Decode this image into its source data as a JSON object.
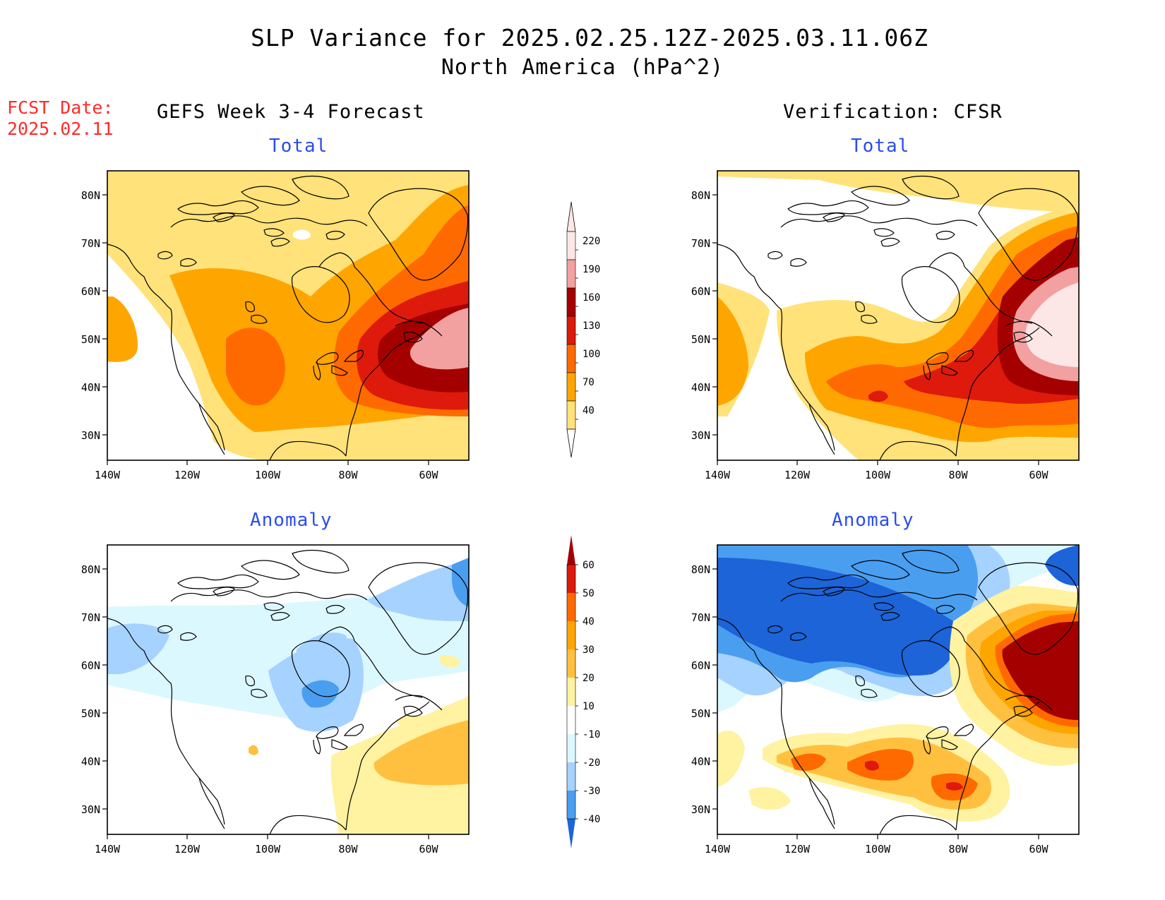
{
  "title": {
    "line1": "SLP Variance for 2025.02.25.12Z-2025.03.11.06Z",
    "line2": "North America (hPa^2)"
  },
  "fcst": {
    "label": "FCST Date:",
    "date": "2025.02.11"
  },
  "columns": {
    "left": "GEFS Week 3-4 Forecast",
    "right": "Verification: CFSR"
  },
  "panels": {
    "forecast_total": "Total",
    "verif_total": "Total",
    "forecast_anomaly": "Anomaly",
    "verif_anomaly": "Anomaly"
  },
  "axes": {
    "lon_ticks": [
      "140W",
      "120W",
      "100W",
      "80W",
      "60W"
    ],
    "lat_ticks": [
      "80N",
      "70N",
      "60N",
      "50N",
      "40N",
      "30N"
    ]
  },
  "colorbars": {
    "total": {
      "levels": [
        "220",
        "190",
        "160",
        "130",
        "100",
        "70",
        "40"
      ],
      "colors": [
        "#fde6e6",
        "#f2a0a0",
        "#a50000",
        "#dd1a0c",
        "#ff6a00",
        "#ffa500",
        "#ffe27a"
      ]
    },
    "anomaly": {
      "levels": [
        "60",
        "50",
        "40",
        "30",
        "20",
        "10",
        "-10",
        "-20",
        "-30",
        "-40"
      ],
      "colors": [
        "#a50000",
        "#dd1a0c",
        "#ff6a00",
        "#ffa500",
        "#ffc040",
        "#fff2a0",
        "#ffffff",
        "#dcf8ff",
        "#a6d2ff",
        "#4a9ef0",
        "#1c64d8"
      ]
    }
  }
}
